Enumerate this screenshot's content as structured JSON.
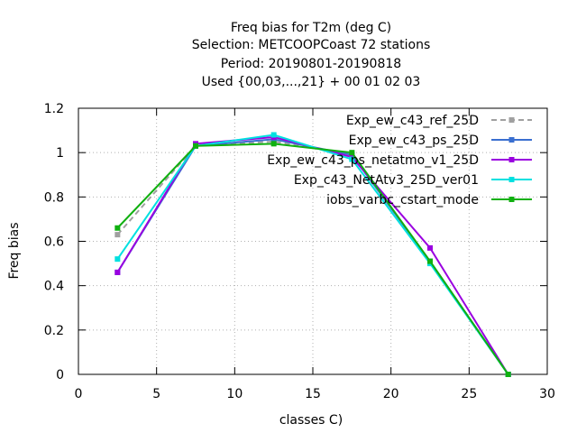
{
  "chart_data": {
    "type": "line",
    "title_lines": [
      "Freq bias  for T2m (deg C)",
      "Selection: METCOOPCoast     72 stations",
      "Period: 20190801-20190818",
      "Used {00,03,...,21} + 00 01 02 03"
    ],
    "xlabel": "classes C)",
    "ylabel": "Freq bias",
    "xlim": [
      0,
      30
    ],
    "ylim": [
      0,
      1.2
    ],
    "xticks": [
      0,
      5,
      10,
      15,
      20,
      25,
      30
    ],
    "yticks": [
      0,
      0.2,
      0.4,
      0.6,
      0.8,
      1,
      1.2
    ],
    "xtick_labels": [
      "0",
      "5",
      "10",
      "15",
      "20",
      "25",
      "30"
    ],
    "ytick_labels": [
      "0",
      "0.2",
      "0.4",
      "0.6",
      "0.8",
      "1",
      "1.2"
    ],
    "grid": true,
    "legend_position": "top-right",
    "x": [
      2.5,
      7.5,
      12.5,
      17.5,
      22.5,
      27.5
    ],
    "series": [
      {
        "name": "Exp_ew_c43_ref_25D",
        "color": "#a0a0a0",
        "dashed": true,
        "values": [
          0.63,
          1.03,
          1.05,
          0.99,
          0.51,
          0.0
        ]
      },
      {
        "name": "Exp_ew_c43_ps_25D",
        "color": "#3a6fd0",
        "dashed": false,
        "values": [
          0.46,
          1.03,
          1.06,
          0.99,
          0.51,
          0.0
        ]
      },
      {
        "name": "Exp_ew_c43_ps_netatmo_v1_25D",
        "color": "#9a00e0",
        "dashed": false,
        "values": [
          0.46,
          1.04,
          1.07,
          0.98,
          0.57,
          0.0
        ]
      },
      {
        "name": "Exp_c43_NetAtv3_25D_ver01",
        "color": "#00e0e0",
        "dashed": false,
        "values": [
          0.52,
          1.03,
          1.08,
          0.97,
          0.5,
          0.0
        ]
      },
      {
        "name": "iobs_varbc_cstart_mode",
        "color": "#10b010",
        "dashed": false,
        "values": [
          0.66,
          1.03,
          1.04,
          1.0,
          0.51,
          0.0
        ]
      }
    ]
  }
}
